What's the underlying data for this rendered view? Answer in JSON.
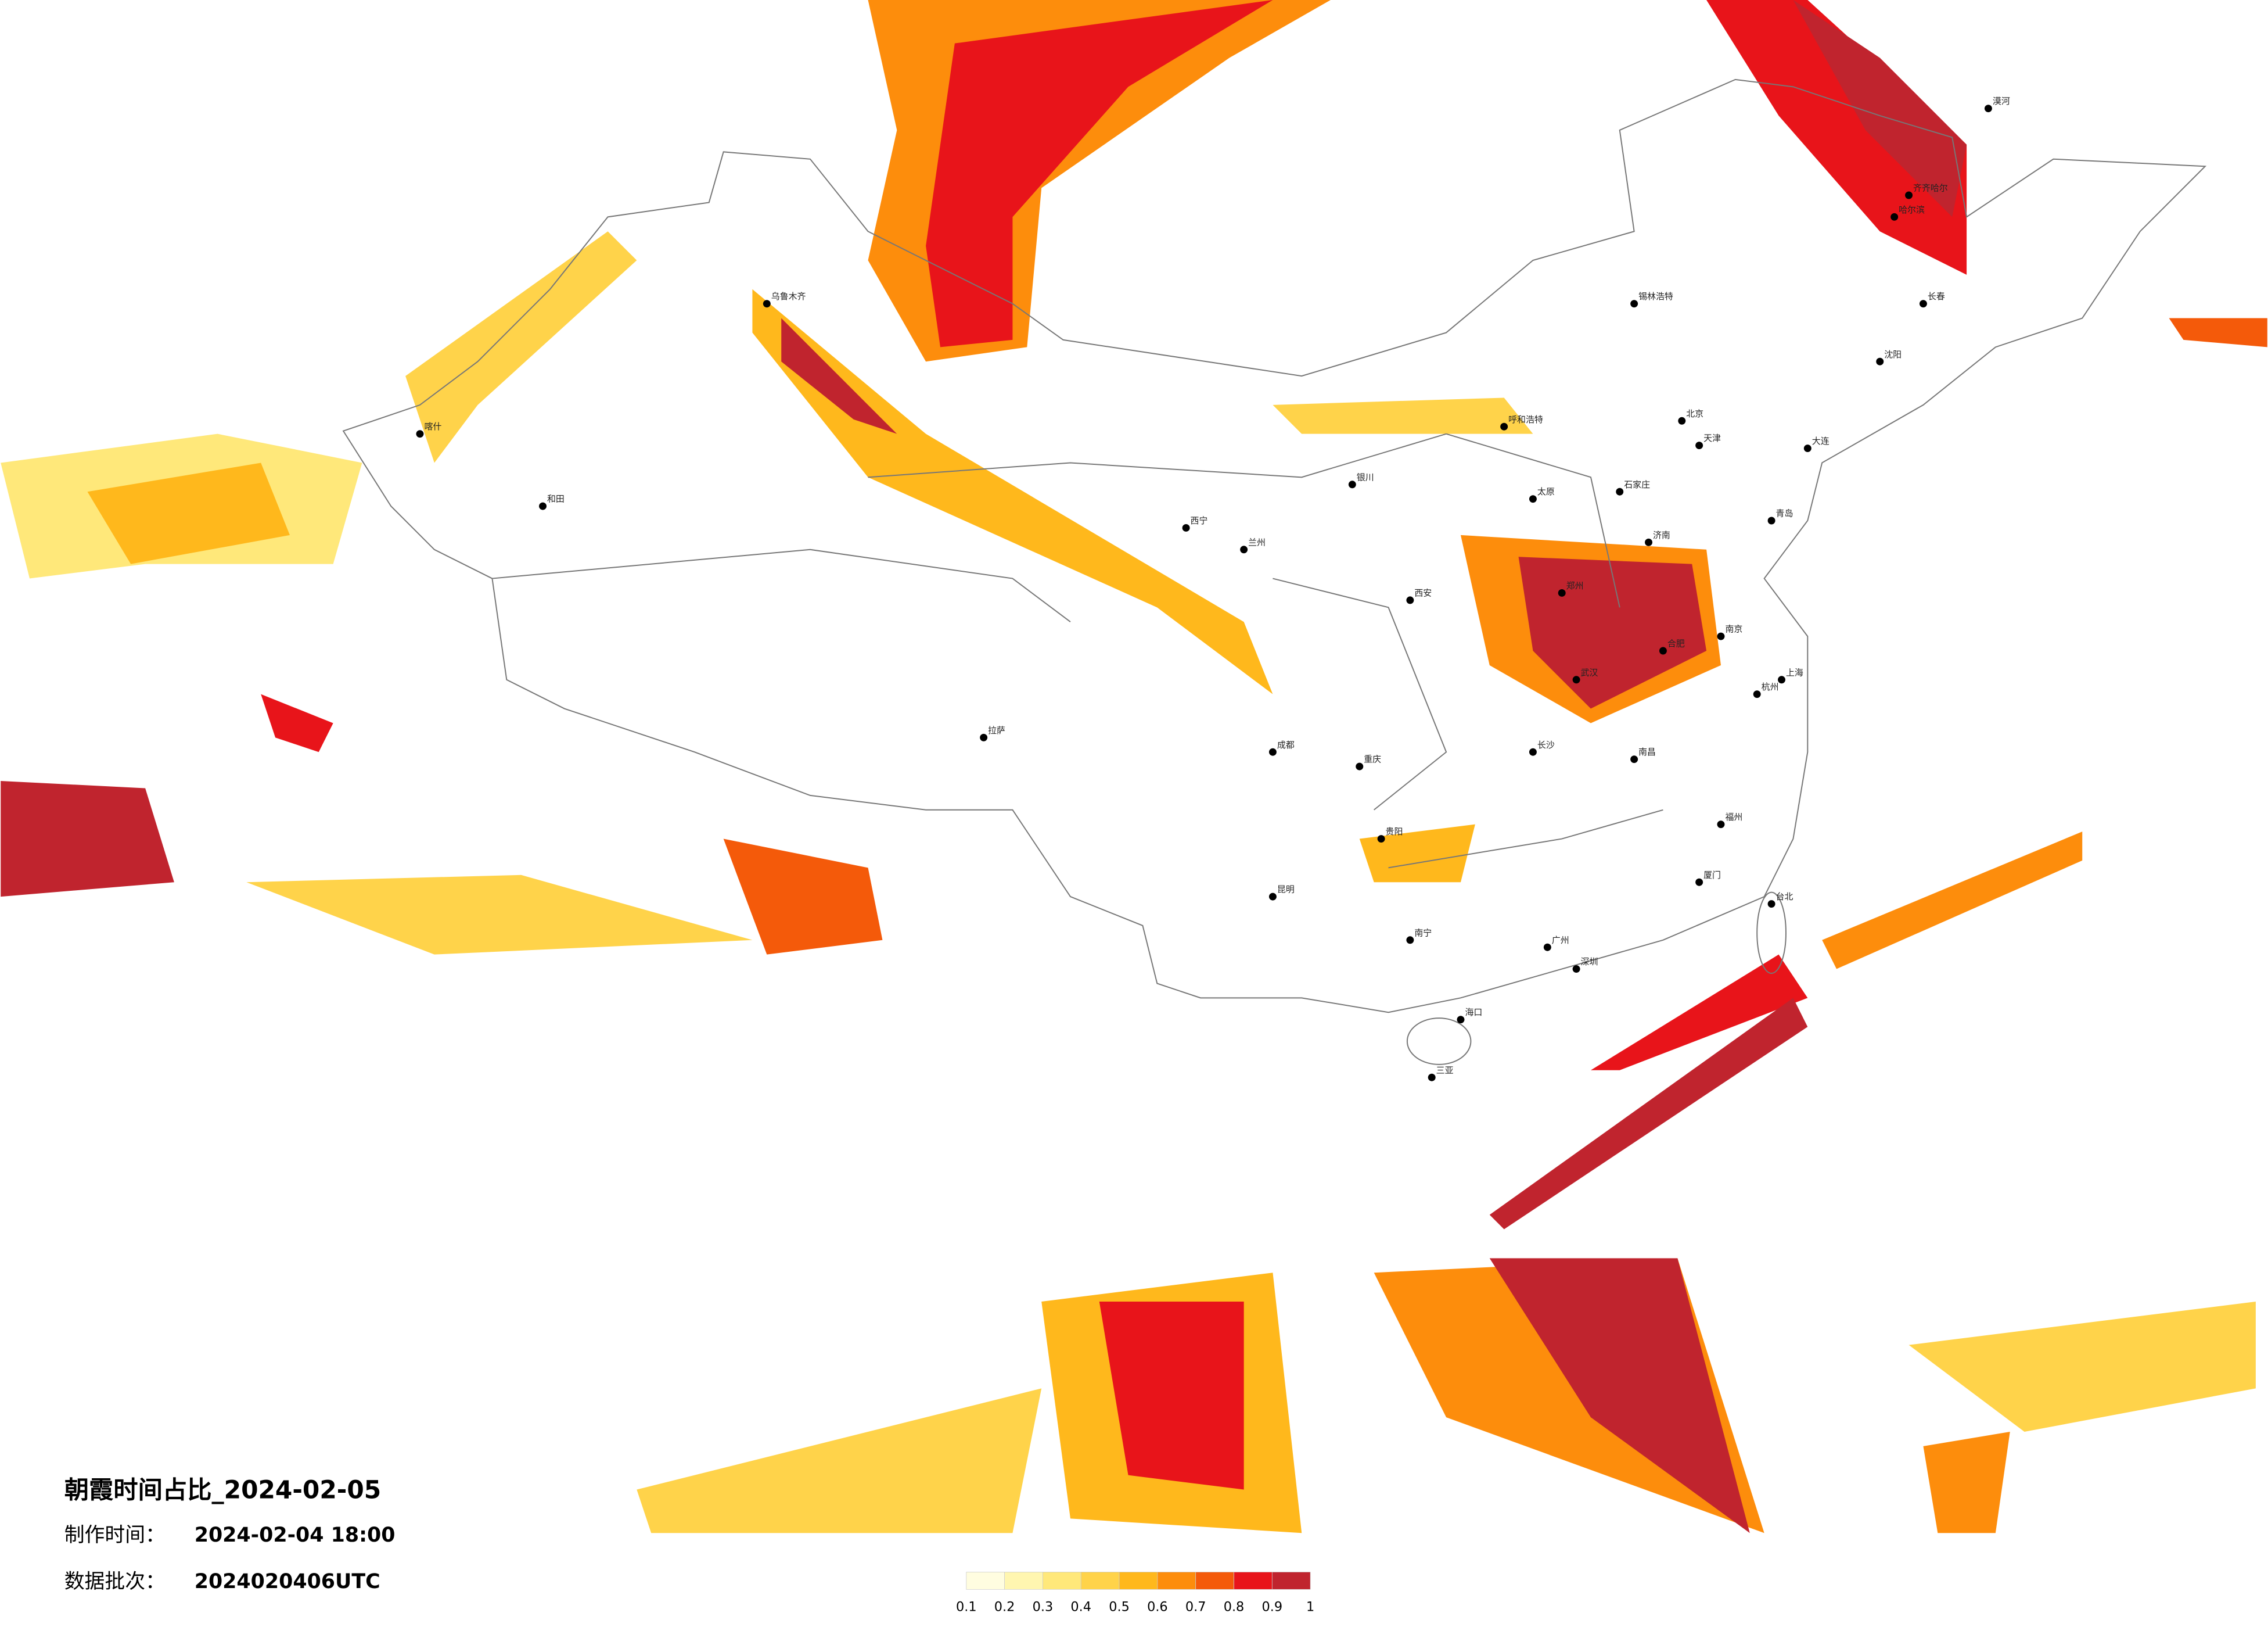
{
  "title": "朝霞时间占比_2024-02-05",
  "made_label": "制作时间：",
  "made_time": "2024-02-04 18:00",
  "batch_label": "数据批次：",
  "batch": "2024020406UTC",
  "colorbar": {
    "ticks": [
      0.1,
      0.2,
      0.3,
      0.4,
      0.5,
      0.6,
      0.7,
      0.8,
      0.9,
      1
    ],
    "colors": [
      "#fffde0",
      "#fff6b0",
      "#ffe87a",
      "#ffd34a",
      "#ffb81c",
      "#fd8d0c",
      "#f45a0a",
      "#e8141a",
      "#c0242e"
    ]
  },
  "cities": [
    "北京",
    "天津",
    "上海",
    "南京",
    "杭州",
    "武汉",
    "长沙",
    "广州",
    "深圳",
    "南昌",
    "福州",
    "厦门",
    "合肥",
    "济南",
    "郑州",
    "石家庄",
    "太原",
    "西安",
    "兰州",
    "西宁",
    "成都",
    "重庆",
    "贵阳",
    "昆明",
    "南宁",
    "海口",
    "拉萨",
    "乌鲁木齐",
    "哈尔滨",
    "长春",
    "沈阳",
    "大连",
    "青岛",
    "呼和浩特",
    "银川",
    "喀什",
    "和田",
    "漠河",
    "齐齐哈尔",
    "台北",
    "锡林浩特",
    "三亚"
  ]
}
